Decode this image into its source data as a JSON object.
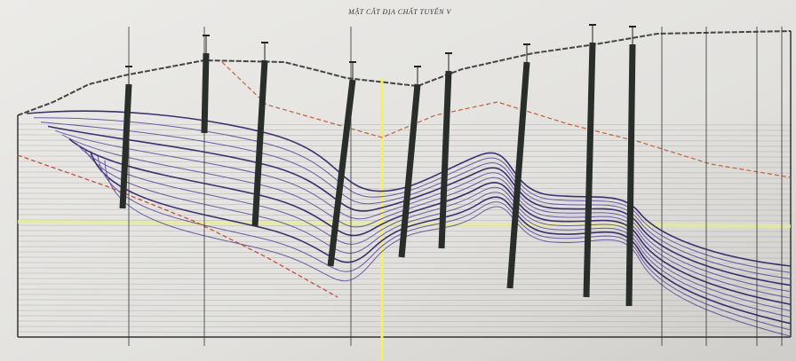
{
  "header": {
    "title": "MẶT CẮT ĐỊA CHẤT TUYẾN V"
  }
}
